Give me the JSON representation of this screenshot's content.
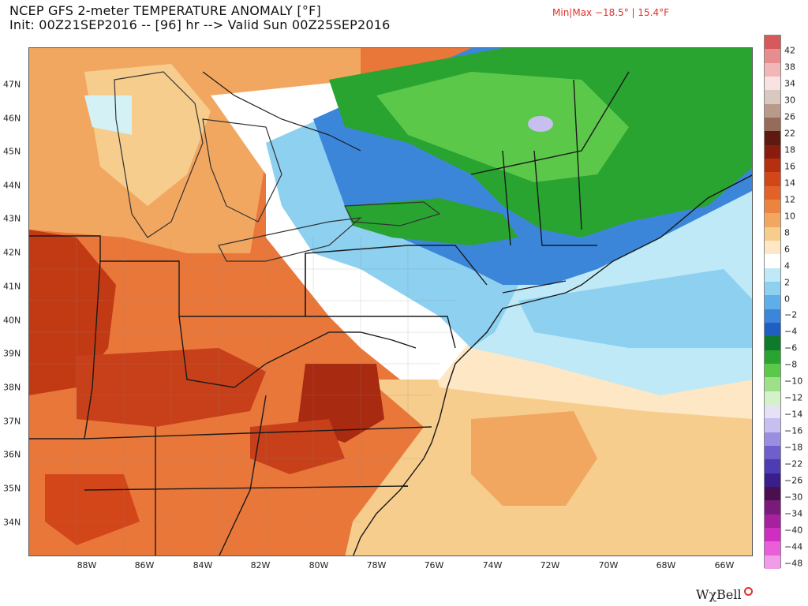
{
  "header": {
    "title_line1": "NCEP GFS 2-meter TEMPERATURE ANOMALY [°F]",
    "title_line2": "Init: 00Z21SEP2016 -- [96] hr --> Valid Sun 00Z25SEP2016",
    "minmax": "Min|Max −18.5° | 15.4°F"
  },
  "map": {
    "lat_labels": [
      "47N",
      "46N",
      "45N",
      "44N",
      "43N",
      "42N",
      "41N",
      "40N",
      "39N",
      "38N",
      "37N",
      "36N",
      "35N",
      "34N"
    ],
    "lon_labels": [
      "88W",
      "86W",
      "84W",
      "82W",
      "80W",
      "78W",
      "76W",
      "74W",
      "72W",
      "70W",
      "68W",
      "66W"
    ]
  },
  "colorbar": {
    "labels": [
      "42",
      "38",
      "34",
      "30",
      "26",
      "22",
      "18",
      "16",
      "14",
      "12",
      "10",
      "8",
      "6",
      "4",
      "2",
      "0",
      "−2",
      "−4",
      "−6",
      "−8",
      "−10",
      "−12",
      "−14",
      "−16",
      "−18",
      "−22",
      "−26",
      "−30",
      "−34",
      "−40",
      "−44",
      "−48"
    ],
    "colors": [
      "#d65a5a",
      "#e88d8d",
      "#f1b6b6",
      "#fbe2e2",
      "#d8c9c0",
      "#b89a8a",
      "#966b5a",
      "#5e1a10",
      "#8a1c0e",
      "#b5300f",
      "#d2461a",
      "#e2622a",
      "#ec8440",
      "#f2a760",
      "#f7cd8e",
      "#fde7c4",
      "#ffffff",
      "#bfe9f6",
      "#8dd0f0",
      "#5eaee9",
      "#3c86da",
      "#1f5fc2",
      "#0e7a2a",
      "#29a431",
      "#5cc84a",
      "#9ee08a",
      "#d4f2c8",
      "#e6e2f6",
      "#c6bff0",
      "#9a8ee0",
      "#6f5fcc",
      "#4e3cb5",
      "#3a1f8c",
      "#4b0f4f",
      "#7a1a7a",
      "#a7209e",
      "#cf2ec0",
      "#e85fd8",
      "#f29be8"
    ]
  },
  "brand": {
    "name": "WχBell"
  }
}
